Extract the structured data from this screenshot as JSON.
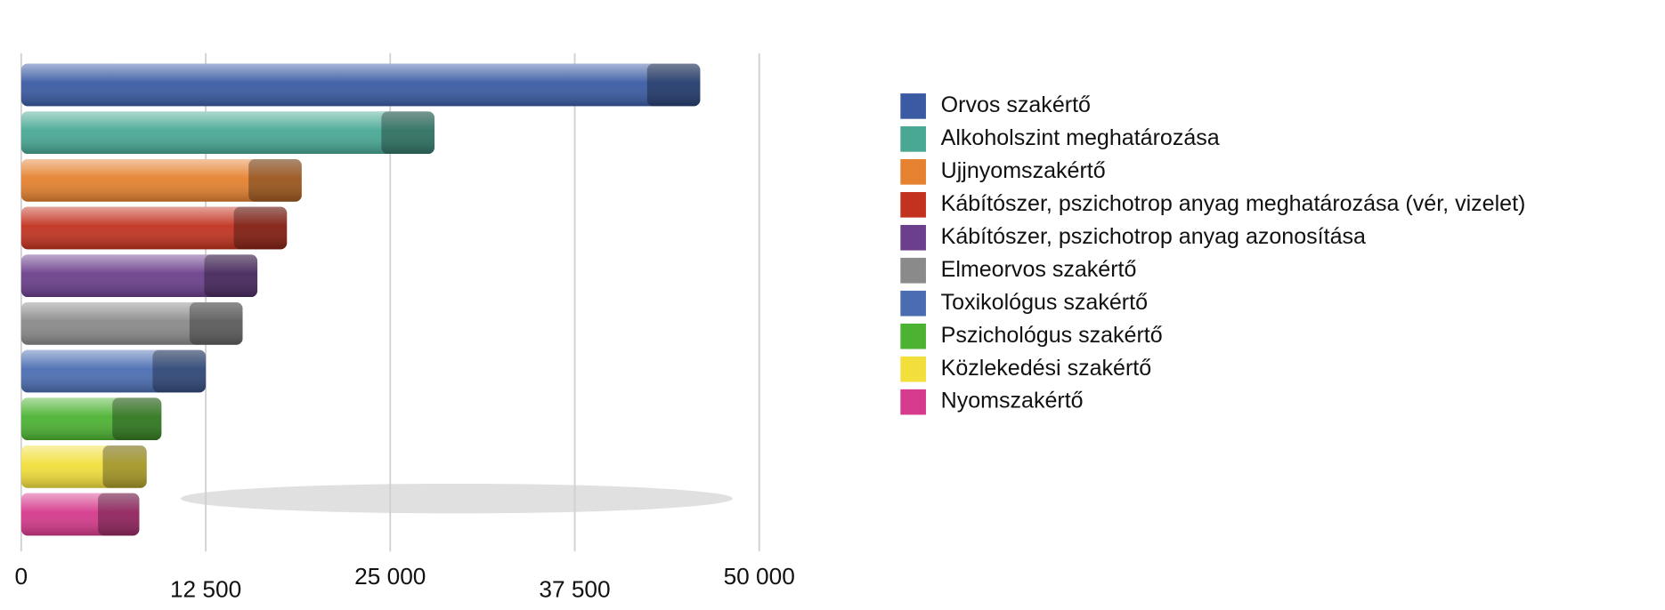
{
  "chart_data": {
    "type": "bar",
    "orientation": "horizontal",
    "categories": [
      "Orvos szakértő",
      "Alkoholszint meghatározása",
      "Ujjnyomszakértő",
      "Kábítószer, pszichotrop anyag meghatározása (vér, vizelet)",
      "Kábítószer, pszichotrop anyag azonosítása",
      "Elmeorvos szakértő",
      "Toxikológus szakértő",
      "Pszichológus szakértő",
      "Közlekedési szakértő",
      "Nyomszakértő"
    ],
    "values": [
      46000,
      28000,
      19000,
      18000,
      16000,
      15000,
      12500,
      9500,
      8500,
      8000
    ],
    "colors": [
      "#3a5ba3",
      "#48a894",
      "#e5812f",
      "#c2321f",
      "#6b3f8c",
      "#8a8a8a",
      "#4a6db2",
      "#4cb332",
      "#f2df3c",
      "#d63a8c"
    ],
    "xlim": [
      0,
      50000
    ],
    "xticks": [
      {
        "value": 0,
        "label": "0"
      },
      {
        "value": 12500,
        "label": "12 500"
      },
      {
        "value": 25000,
        "label": "25 000"
      },
      {
        "value": 37500,
        "label": "37 500"
      },
      {
        "value": 50000,
        "label": "50 000"
      }
    ],
    "grid": true,
    "legend": "right"
  }
}
